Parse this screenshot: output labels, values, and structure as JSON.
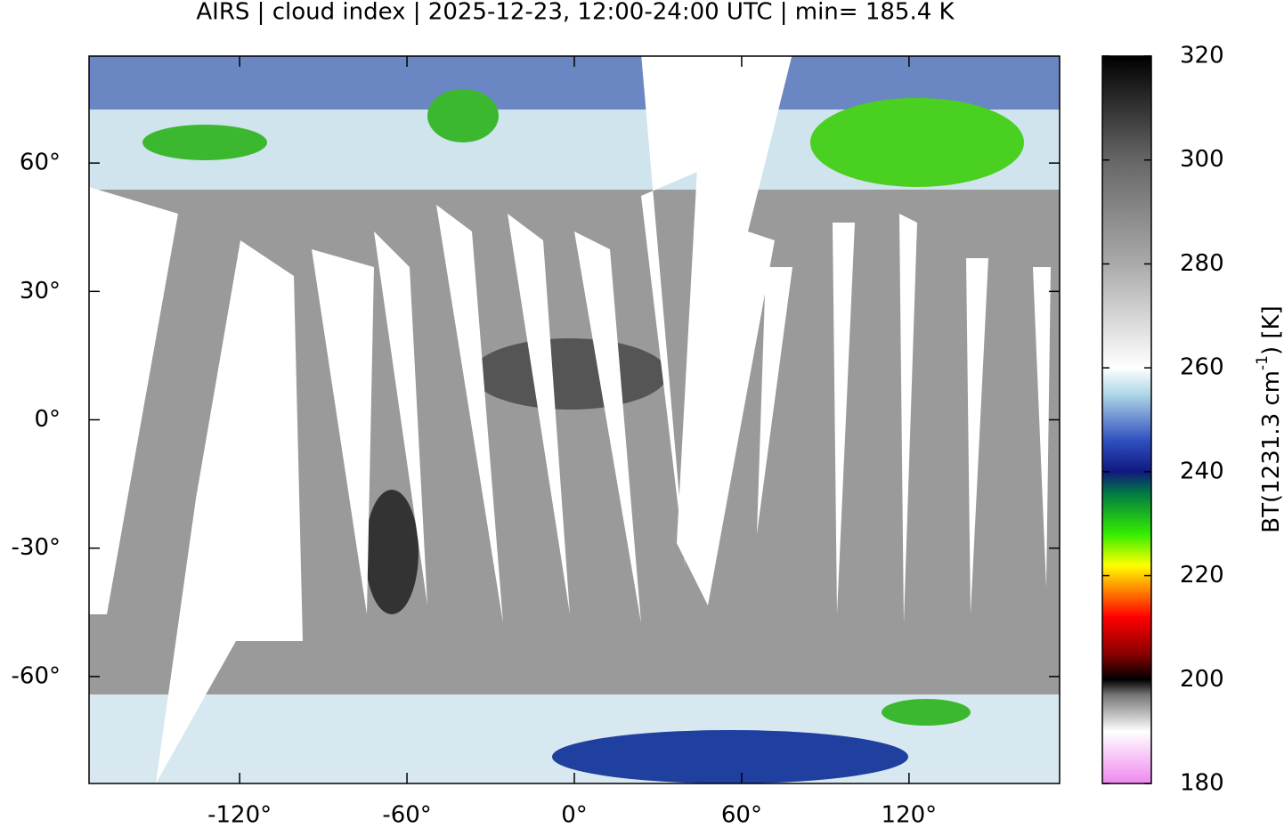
{
  "map": {
    "title": "AIRS | cloud index | 2025-12-23, 12:00-24:00 UTC | min= 185.4 K",
    "xlim": [
      -174,
      174
    ],
    "ylim": [
      -85,
      85
    ],
    "xticks": [
      {
        "value": -120,
        "label": "-120°"
      },
      {
        "value": -60,
        "label": "-60°"
      },
      {
        "value": 0,
        "label": "0°"
      },
      {
        "value": 60,
        "label": "60°"
      },
      {
        "value": 120,
        "label": "120°"
      }
    ],
    "yticks": [
      {
        "value": 60,
        "label": "60°"
      },
      {
        "value": 30,
        "label": "30°"
      },
      {
        "value": 0,
        "label": "0°"
      },
      {
        "value": -30,
        "label": "-30°"
      },
      {
        "value": -60,
        "label": "-60°"
      }
    ],
    "colorbar": {
      "label": [
        "BT(1231.3 cm",
        "-1",
        ") [K]"
      ],
      "lim": [
        180,
        320
      ],
      "ticks": [
        180,
        200,
        220,
        240,
        260,
        280,
        300,
        320
      ],
      "stops": [
        {
          "value": 180,
          "color": "#ee88ee"
        },
        {
          "value": 190,
          "color": "#ffffff"
        },
        {
          "value": 197,
          "color": "#777777"
        },
        {
          "value": 200,
          "color": "#000000"
        },
        {
          "value": 205,
          "color": "#8b0000"
        },
        {
          "value": 212,
          "color": "#ff0000"
        },
        {
          "value": 218,
          "color": "#ff9900"
        },
        {
          "value": 222,
          "color": "#ffff00"
        },
        {
          "value": 228,
          "color": "#33ee00"
        },
        {
          "value": 236,
          "color": "#007744"
        },
        {
          "value": 240,
          "color": "#101880"
        },
        {
          "value": 246,
          "color": "#3050c0"
        },
        {
          "value": 255,
          "color": "#b0d8e8"
        },
        {
          "value": 260,
          "color": "#ffffff"
        },
        {
          "value": 280,
          "color": "#aaaaaa"
        },
        {
          "value": 300,
          "color": "#666666"
        },
        {
          "value": 320,
          "color": "#000000"
        }
      ]
    }
  }
}
